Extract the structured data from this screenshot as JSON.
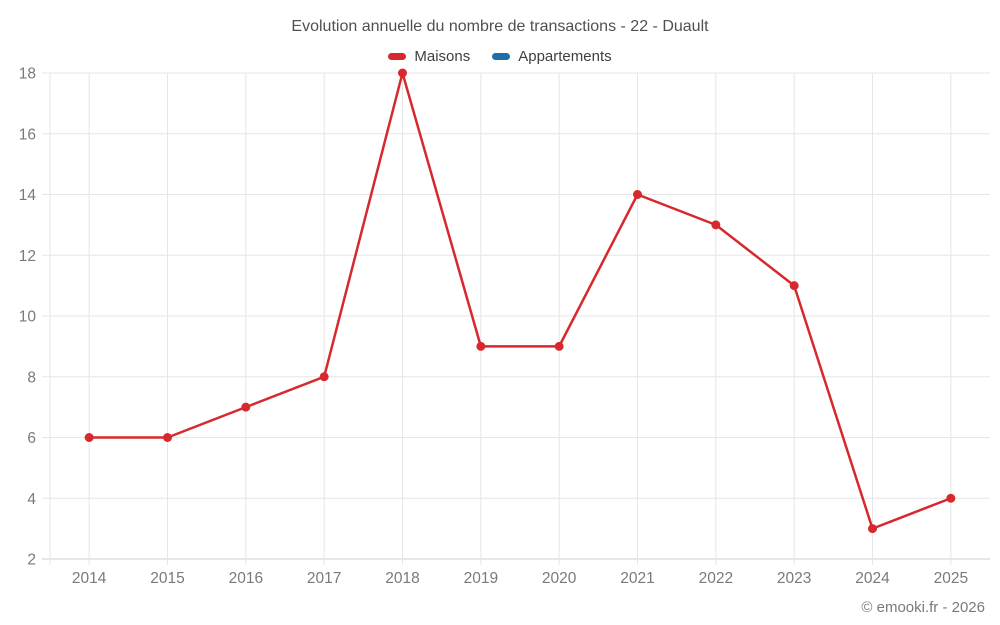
{
  "title": "Evolution annuelle du nombre de transactions - 22 - Duault",
  "legend": [
    {
      "label": "Maisons",
      "color": "#d7282d"
    },
    {
      "label": "Appartements",
      "color": "#1d6fa5"
    }
  ],
  "footer": "© emooki.fr - 2026",
  "colors": {
    "grid": "#e6e6e6",
    "axis_line": "#cfcfcf",
    "tick_label": "#7a7a7e",
    "title": "#505053",
    "background": "#ffffff"
  },
  "chart_data": {
    "type": "line",
    "categories": [
      "2014",
      "2015",
      "2016",
      "2017",
      "2018",
      "2019",
      "2020",
      "2021",
      "2022",
      "2023",
      "2024",
      "2025"
    ],
    "series": [
      {
        "name": "Maisons",
        "color": "#d7282d",
        "values": [
          6,
          6,
          7,
          8,
          18,
          9,
          9,
          14,
          13,
          11,
          3,
          4
        ]
      },
      {
        "name": "Appartements",
        "color": "#1d6fa5",
        "values": []
      }
    ],
    "title": "Evolution annuelle du nombre de transactions - 22 - Duault",
    "xlabel": "",
    "ylabel": "",
    "ylim": [
      2,
      18
    ],
    "ytick_step": 2,
    "grid": true,
    "legend_position": "top",
    "marker": "circle"
  }
}
